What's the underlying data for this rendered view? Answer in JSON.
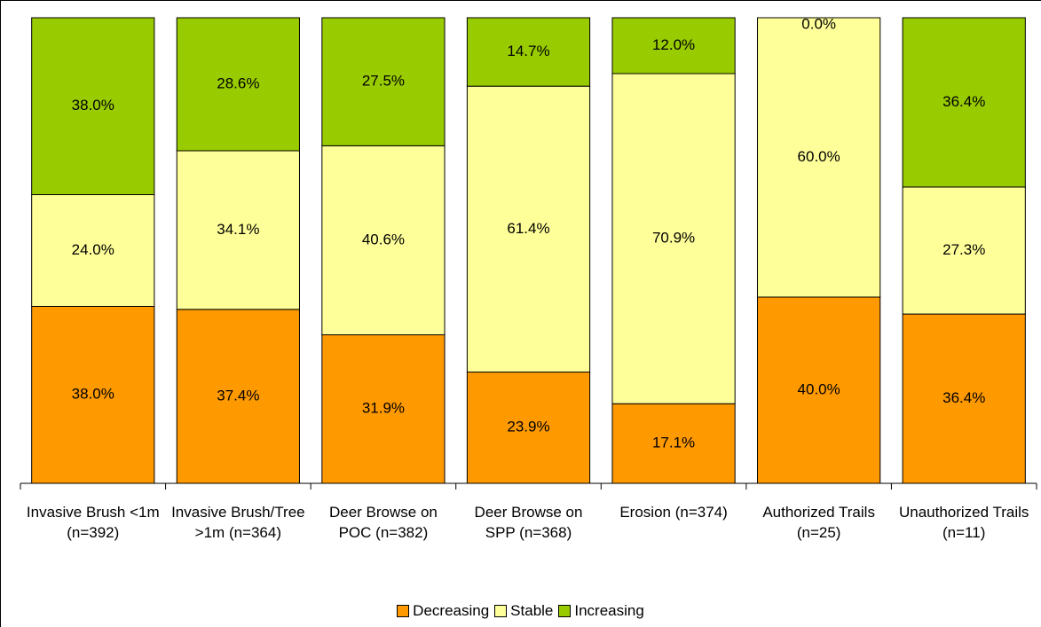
{
  "chart_data": {
    "type": "stacked_bar",
    "categories": [
      "Invasive Brush <1m (n=392)",
      "Invasive Brush/Tree >1m (n=364)",
      "Deer Browse on POC (n=382)",
      "Deer Browse on SPP (n=368)",
      "Erosion (n=374)",
      "Authorized Trails (n=25)",
      "Unauthorized Trails (n=11)"
    ],
    "series": [
      {
        "name": "Decreasing",
        "color": "#ff9900",
        "values": [
          38,
          37.4,
          31.9,
          23.9,
          17.1,
          40,
          36.4
        ],
        "value_labels": [
          "38.0%",
          "37.4%",
          "31.9%",
          "23.9%",
          "17.1%",
          "40.0%",
          "36.4%"
        ]
      },
      {
        "name": "Stable",
        "color": "#ffff99",
        "values": [
          24,
          34.1,
          40.6,
          61.4,
          70.9,
          60,
          27.3
        ],
        "value_labels": [
          "24.0%",
          "34.1%",
          "40.6%",
          "61.4%",
          "70.9%",
          "60.0%",
          "27.3%"
        ]
      },
      {
        "name": "Increasing",
        "color": "#99cc00",
        "values": [
          38,
          28.6,
          27.5,
          14.7,
          12,
          0,
          36.4
        ],
        "value_labels": [
          "38.0%",
          "28.6%",
          "27.5%",
          "14.7%",
          "12.0%",
          "0.0%",
          "36.4%"
        ]
      }
    ]
  }
}
